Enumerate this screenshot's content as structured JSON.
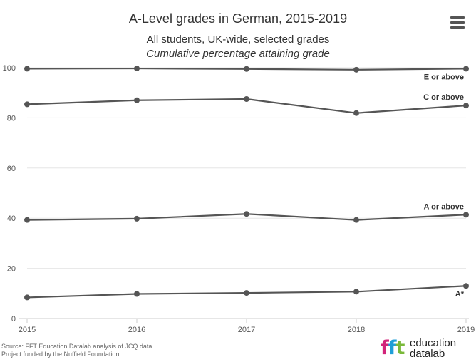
{
  "header": {
    "title": "A-Level grades in German, 2015-2019",
    "subtitle_line1": "All students, UK-wide, selected grades",
    "subtitle_line2": "Cumulative percentage attaining grade"
  },
  "footer": {
    "source": "Source: FFT Education Datalab analysis of JCQ data",
    "funding": "Project funded by the Nuffield Foundation"
  },
  "logo": {
    "mark": "fft",
    "line1": "education",
    "line2": "datalab"
  },
  "icons": {
    "menu": "hamburger-menu-icon"
  },
  "colors": {
    "line": "#555555",
    "grid": "#e6e6e6",
    "axis": "#cccccc"
  },
  "chart_data": {
    "type": "line",
    "x": [
      2015,
      2016,
      2017,
      2018,
      2019
    ],
    "ylim": [
      0,
      100
    ],
    "yticks": [
      0,
      20,
      40,
      60,
      80,
      100
    ],
    "grid": true,
    "series": [
      {
        "name": "E or above",
        "values": [
          99.6,
          99.7,
          99.5,
          99.2,
          99.6
        ]
      },
      {
        "name": "C or above",
        "values": [
          85.4,
          87.0,
          87.5,
          81.9,
          84.9
        ]
      },
      {
        "name": "A or above",
        "values": [
          39.3,
          39.8,
          41.7,
          39.3,
          41.4
        ]
      },
      {
        "name": "A*",
        "values": [
          8.4,
          9.8,
          10.2,
          10.7,
          13.0
        ]
      }
    ]
  }
}
